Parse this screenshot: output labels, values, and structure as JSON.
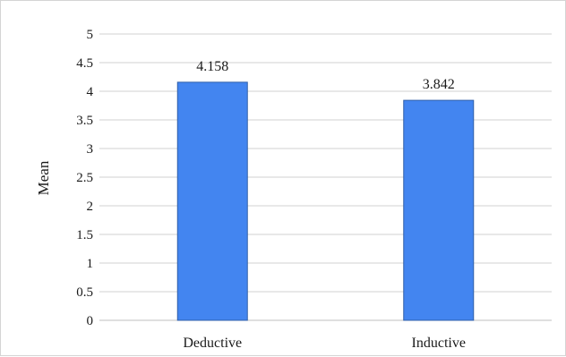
{
  "chart_data": {
    "type": "bar",
    "categories": [
      "Deductive",
      "Inductive"
    ],
    "values": [
      4.158,
      3.842
    ],
    "data_labels": [
      "4.158",
      "3.842"
    ],
    "ylabel": "Mean",
    "xlabel": "",
    "ylim": [
      0,
      5
    ],
    "yticks": [
      0,
      0.5,
      1,
      1.5,
      2,
      2.5,
      3,
      3.5,
      4,
      4.5,
      5
    ],
    "ytick_labels": [
      "0",
      "0.5",
      "1",
      "1.5",
      "2",
      "2.5",
      "3",
      "3.5",
      "4",
      "4.5",
      "5"
    ],
    "grid": true,
    "legend": "none",
    "bar_color": "#4385f0"
  }
}
